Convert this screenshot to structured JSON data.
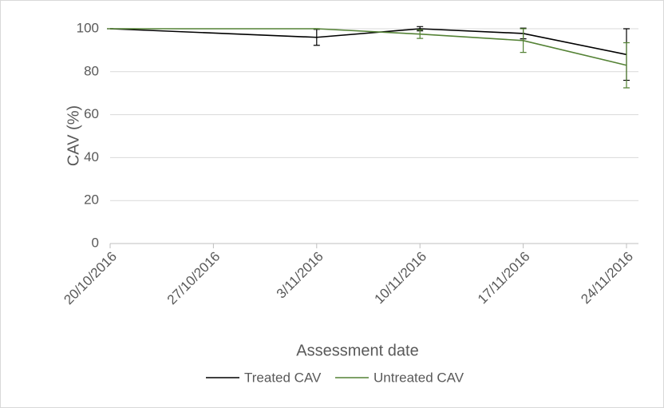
{
  "chart_data": {
    "type": "line",
    "x_label": "Assessment date",
    "y_label": "CAV (%)",
    "x": [
      "20/10/2016",
      "3/11/2016",
      "10/11/2016",
      "17/11/2016",
      "24/11/2016"
    ],
    "series": [
      {
        "name": "Treated CAV",
        "color": "#000000",
        "values": [
          100,
          96,
          100,
          97.8,
          88
        ],
        "errors": [
          0,
          3.7,
          1,
          2.5,
          12
        ]
      },
      {
        "name": "Untreated CAV",
        "color": "#548235",
        "values": [
          100,
          100,
          97.5,
          94.5,
          83
        ],
        "errors": [
          0,
          0,
          2,
          5.5,
          10.5
        ]
      }
    ],
    "xlim": [
      "20/10/2016",
      "24/11/2016"
    ],
    "xticks": [
      "20/10/2016",
      "27/10/2016",
      "3/11/2016",
      "10/11/2016",
      "17/11/2016",
      "24/11/2016"
    ],
    "ylim": [
      0,
      100
    ],
    "yticks": [
      0,
      20,
      40,
      60,
      80,
      100
    ],
    "grid": true,
    "legend": "bottom"
  }
}
